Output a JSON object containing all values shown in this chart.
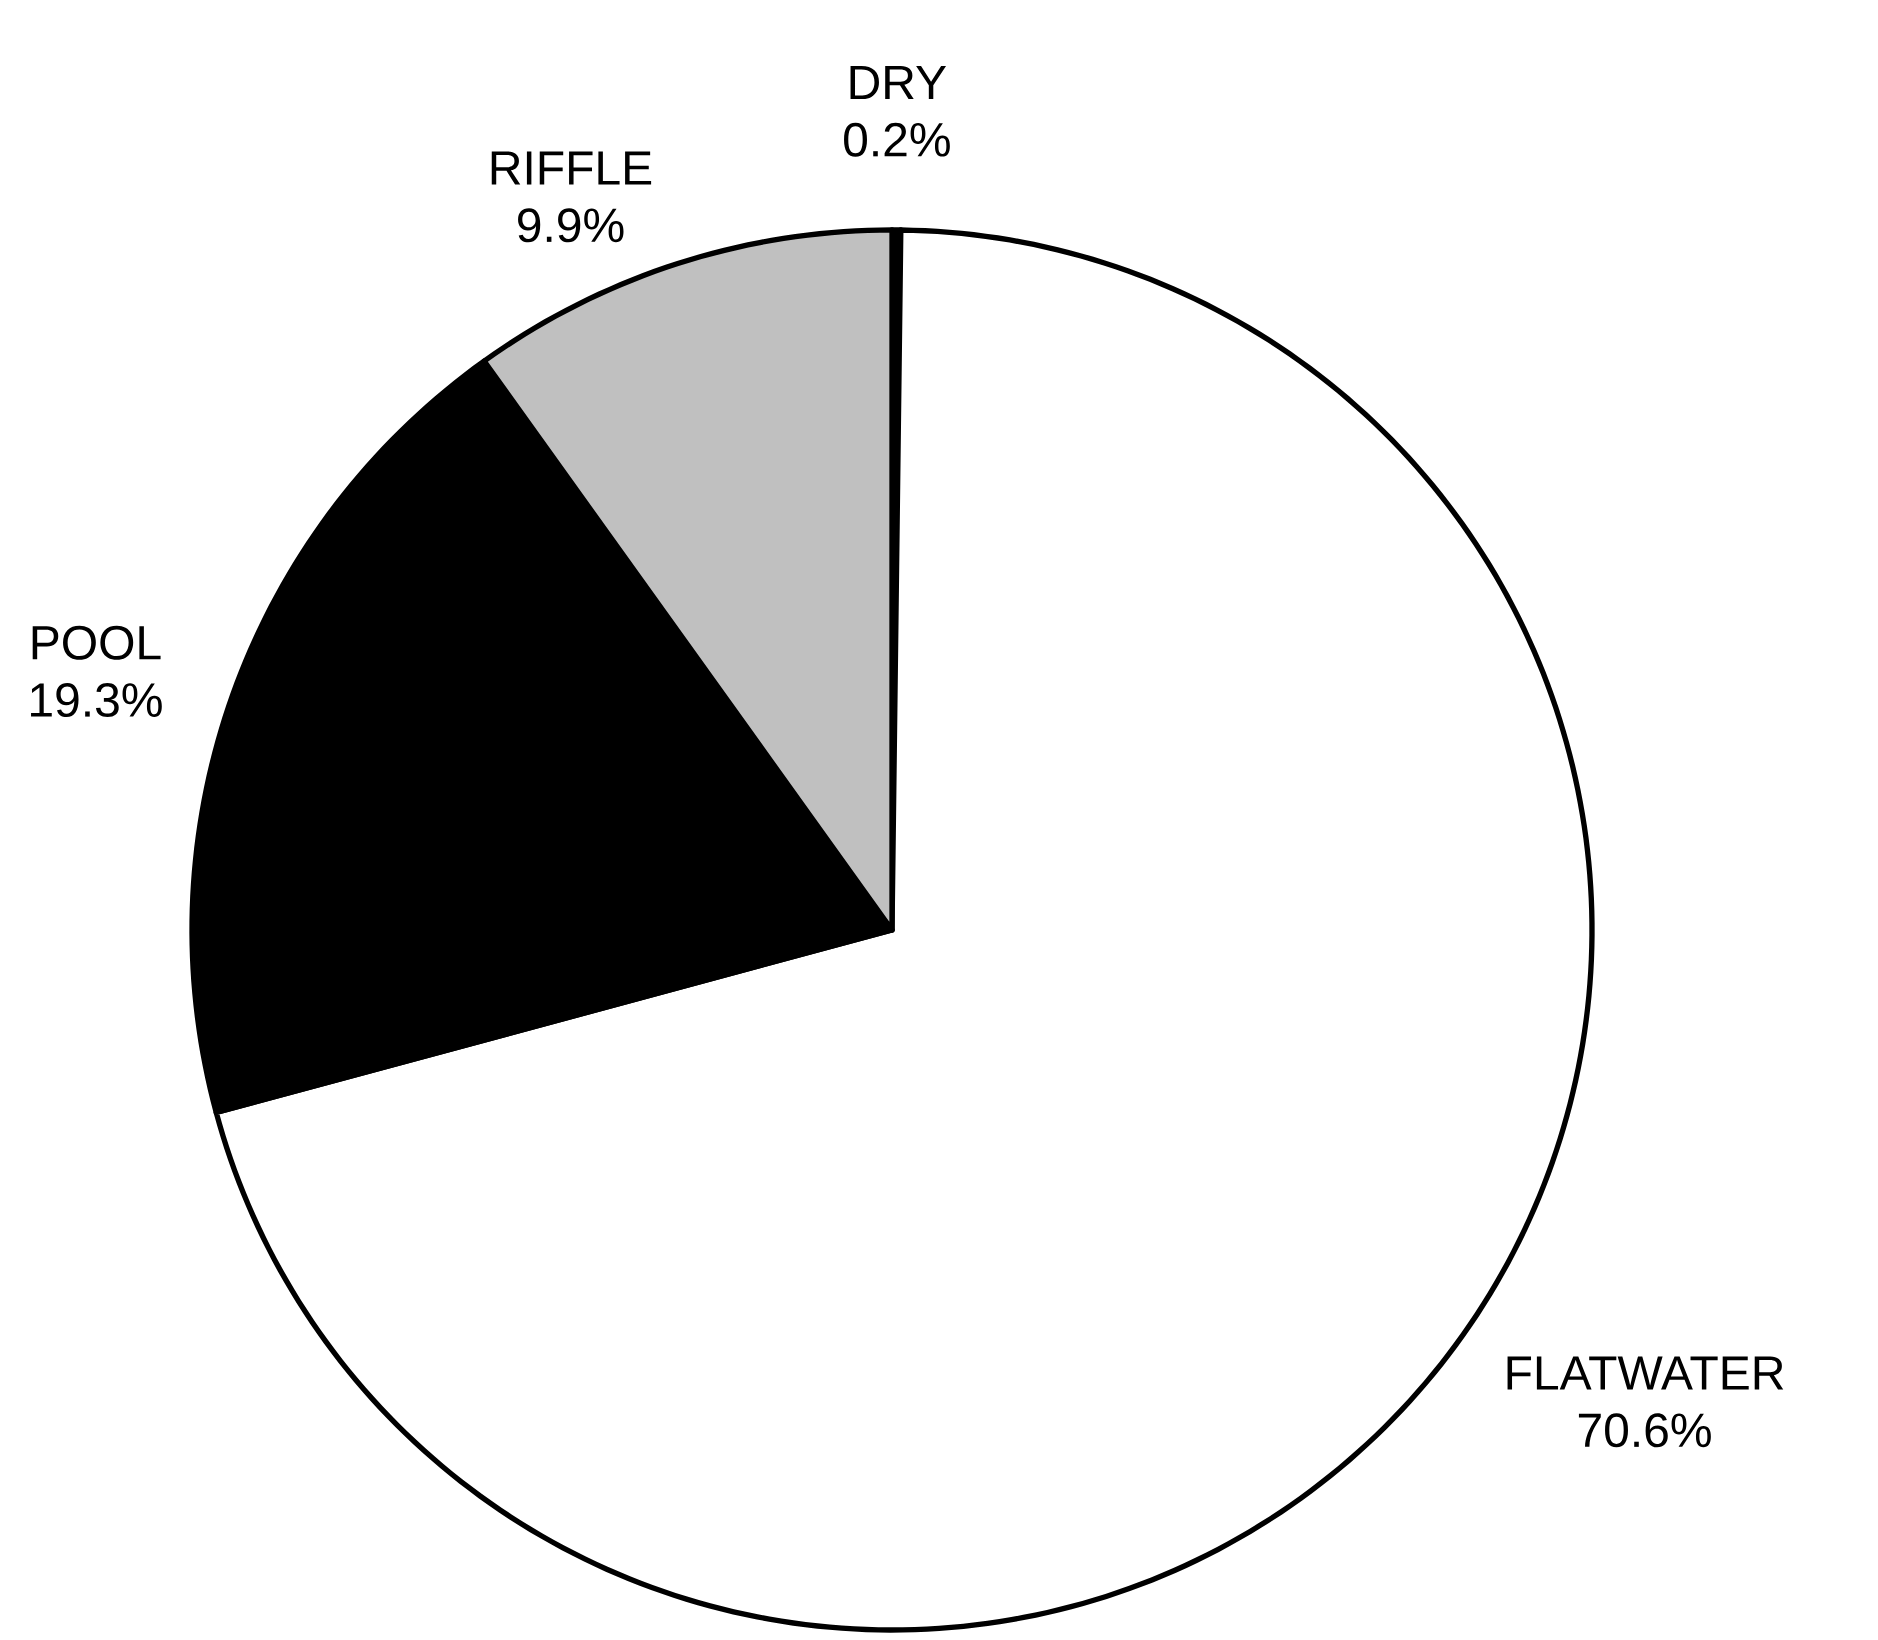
{
  "chart_data": {
    "type": "pie",
    "categories": [
      "DRY",
      "FLATWATER",
      "POOL",
      "RIFFLE"
    ],
    "values": [
      0.2,
      70.6,
      19.3,
      9.9
    ],
    "colors": [
      "#000000",
      "#ffffff",
      "#000000",
      "#c0c0c0"
    ],
    "value_labels": [
      "0.2%",
      "70.6%",
      "19.3%",
      "9.9%"
    ]
  }
}
